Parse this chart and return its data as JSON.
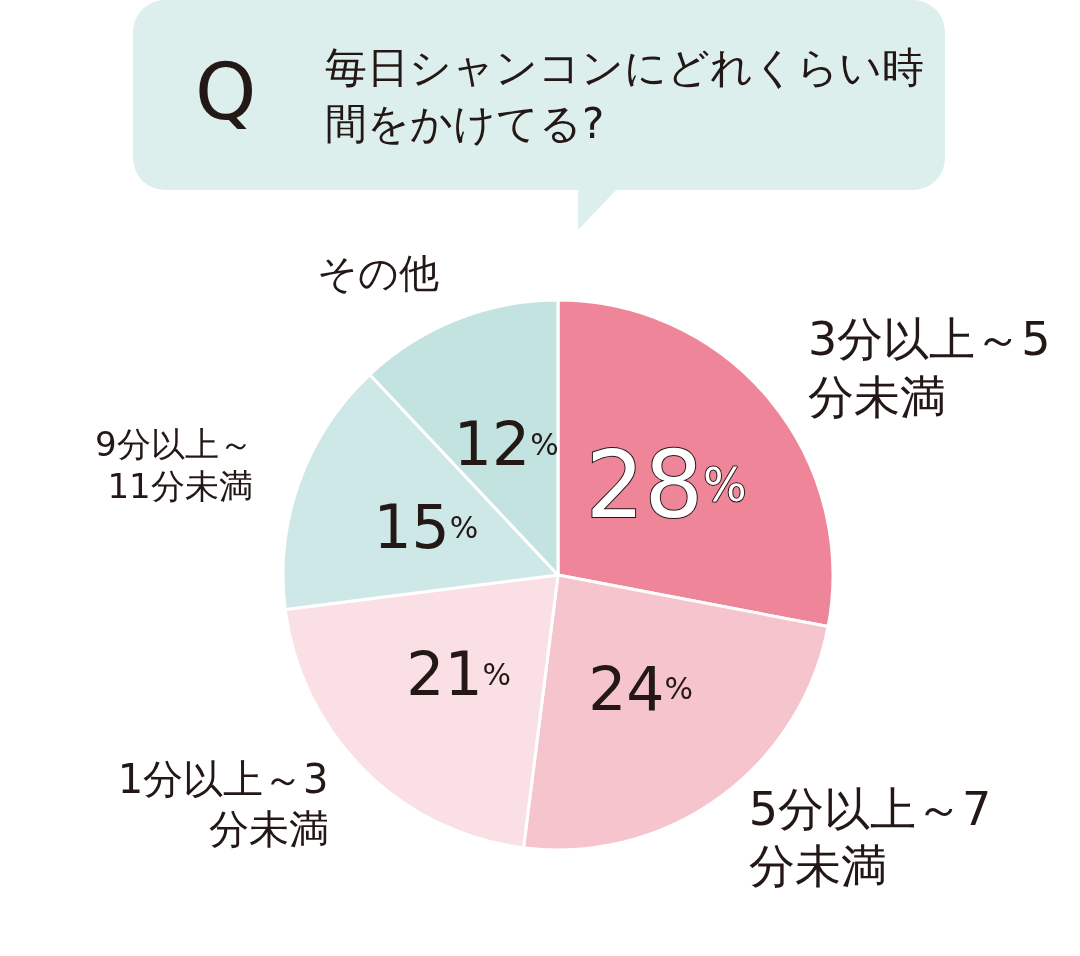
{
  "chart_data": {
    "type": "pie",
    "title": "毎日シャンコンにどれくらい時間をかけてる?",
    "annotations": [
      "Q"
    ],
    "categories": [
      "3分以上～5分未満",
      "5分以上～7分未満",
      "1分以上～3分未満",
      "9分以上～11分未満",
      "その他"
    ],
    "values": [
      28,
      24,
      21,
      15,
      12
    ],
    "value_labels": [
      "28%",
      "24%",
      "21%",
      "15%",
      "12%"
    ],
    "colors": [
      "#ee8599",
      "#f6c4cc",
      "#fae0e4",
      "#cde8e6",
      "#c2e3e0"
    ],
    "legend": false
  }
}
